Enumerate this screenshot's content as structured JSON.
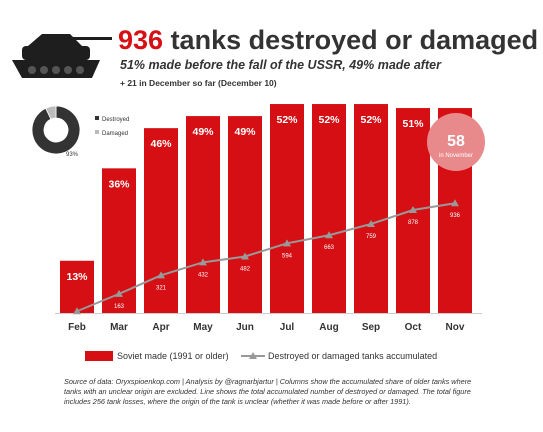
{
  "header": {
    "title_number": "936",
    "title_text": " tanks destroyed or damaged",
    "subtitle": "51% made before the fall of the USSR, 49% made after",
    "note": "+ 21 in December so far (December 10)"
  },
  "callout": {
    "value": "58",
    "label": "in November"
  },
  "donut": {
    "center_label": "93%",
    "slices": [
      {
        "name": "Destroyed",
        "value": 93,
        "color": "#333333"
      },
      {
        "name": "Damaged",
        "value": 7,
        "color": "#bbbbbb"
      }
    ]
  },
  "legend": {
    "bar_label": "Soviet made (1991 or older)",
    "line_label": "Destroyed or damaged tanks accumulated"
  },
  "footer": {
    "text": "Source of data: Oryxspioenkop.com | Analysis by @ragnarbjartur | Columns show the accumulated share of older tanks where tanks with an unclear origin are excluded. Line shows the total accumulated number of destroyed or damaged. The total figure includes 256 tank losses, where the origin of the tank is unclear (whether it was made before or after 1991)."
  },
  "chart_data": {
    "type": "bar",
    "categories": [
      "Feb",
      "Mar",
      "Apr",
      "May",
      "Jun",
      "Jul",
      "Aug",
      "Sep",
      "Oct",
      "Nov"
    ],
    "series": [
      {
        "name": "Soviet made (1991 or older)",
        "type": "bar",
        "values": [
          13,
          36,
          46,
          49,
          49,
          52,
          52,
          52,
          51,
          51
        ],
        "value_labels": [
          "13%",
          "36%",
          "46%",
          "49%",
          "49%",
          "52%",
          "52%",
          "52%",
          "51%",
          "51%"
        ],
        "color": "#d50f14"
      },
      {
        "name": "Destroyed or damaged tanks accumulated",
        "type": "line",
        "values": [
          15,
          163,
          321,
          432,
          482,
          594,
          663,
          759,
          878,
          936
        ],
        "color": "#999999"
      }
    ],
    "bar_scale_max": 54,
    "line_scale_max": 1850
  },
  "colors": {
    "accent": "#d50f14",
    "text": "#333333",
    "line": "#999999"
  }
}
